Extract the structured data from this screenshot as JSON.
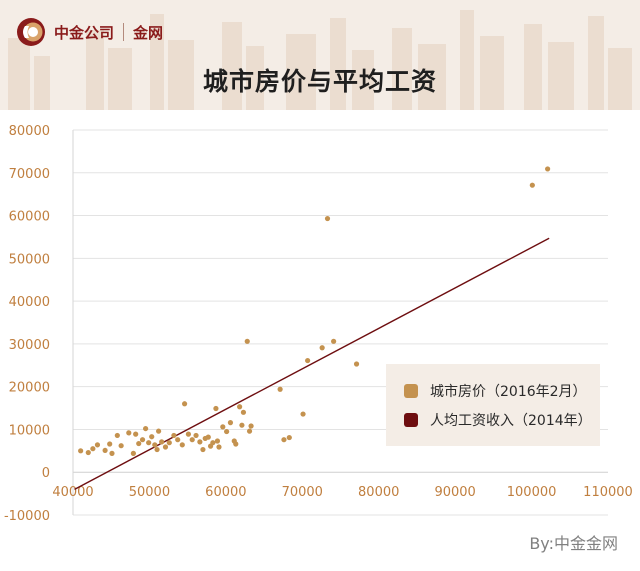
{
  "header": {
    "brand_name": "中金公司",
    "brand_sub": "金网",
    "title": "城市房价与平均工资"
  },
  "footer": {
    "by": "By:中金金网"
  },
  "colors": {
    "scatter": "#c4924f",
    "line": "#6e0e10",
    "legend_bg": "#f4ede6",
    "header_bg": "#f4ede6"
  },
  "chart_data": {
    "type": "scatter",
    "title": "城市房价与平均工资",
    "xlim": [
      40000,
      110000
    ],
    "ylim": [
      -10000,
      80000
    ],
    "x_ticks": [
      "40000",
      "50000",
      "60000",
      "70000",
      "80000",
      "90000",
      "100000",
      "110000"
    ],
    "y_ticks": [
      "-10000",
      "0",
      "10000",
      "20000",
      "30000",
      "40000",
      "50000",
      "60000",
      "70000",
      "80000"
    ],
    "grid": "horizontal",
    "legend_position": "lower-right",
    "series": [
      {
        "name": "城市房价（2016年2月）",
        "kind": "scatter",
        "points": [
          [
            41000,
            5000
          ],
          [
            42000,
            4600
          ],
          [
            42600,
            5500
          ],
          [
            43200,
            6400
          ],
          [
            44200,
            5100
          ],
          [
            44800,
            6600
          ],
          [
            45100,
            4400
          ],
          [
            45800,
            8600
          ],
          [
            46300,
            6200
          ],
          [
            47300,
            9200
          ],
          [
            47900,
            4400
          ],
          [
            48200,
            8900
          ],
          [
            48600,
            6700
          ],
          [
            49100,
            7600
          ],
          [
            49500,
            10200
          ],
          [
            49900,
            6900
          ],
          [
            50300,
            8300
          ],
          [
            50700,
            6400
          ],
          [
            51000,
            5300
          ],
          [
            51200,
            9600
          ],
          [
            51600,
            7100
          ],
          [
            52100,
            5900
          ],
          [
            52600,
            6900
          ],
          [
            53200,
            8600
          ],
          [
            53700,
            7600
          ],
          [
            54300,
            6400
          ],
          [
            54600,
            16000
          ],
          [
            55100,
            8900
          ],
          [
            55600,
            7600
          ],
          [
            56100,
            8600
          ],
          [
            56600,
            7100
          ],
          [
            57000,
            5300
          ],
          [
            57300,
            7900
          ],
          [
            57700,
            8200
          ],
          [
            58000,
            6100
          ],
          [
            58300,
            6900
          ],
          [
            58700,
            14900
          ],
          [
            58900,
            7300
          ],
          [
            59100,
            5900
          ],
          [
            59600,
            10600
          ],
          [
            60100,
            9500
          ],
          [
            60600,
            11600
          ],
          [
            61100,
            7300
          ],
          [
            61300,
            6600
          ],
          [
            61800,
            15300
          ],
          [
            62100,
            11000
          ],
          [
            62300,
            14000
          ],
          [
            62800,
            30600
          ],
          [
            63100,
            9600
          ],
          [
            63300,
            10800
          ],
          [
            67100,
            19400
          ],
          [
            67600,
            7600
          ],
          [
            68300,
            8100
          ],
          [
            70100,
            13600
          ],
          [
            70700,
            26100
          ],
          [
            72600,
            29100
          ],
          [
            73300,
            59300
          ],
          [
            74100,
            30600
          ],
          [
            77100,
            25300
          ],
          [
            100100,
            67100
          ],
          [
            102100,
            70900
          ]
        ]
      },
      {
        "name": "人均工资收入（2014年）",
        "kind": "line",
        "points": [
          [
            40200,
            -4000
          ],
          [
            102300,
            54700
          ]
        ]
      }
    ]
  }
}
